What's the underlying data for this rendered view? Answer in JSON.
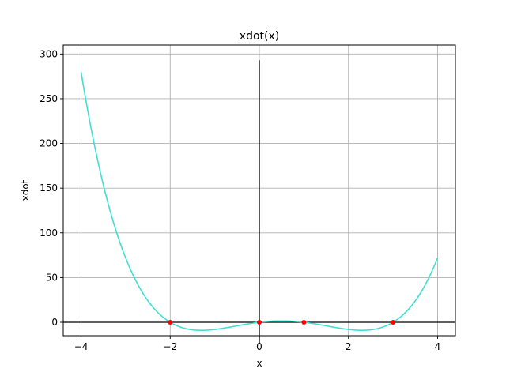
{
  "chart_data": {
    "type": "line",
    "title": "xdot(x)",
    "xlabel": "x",
    "ylabel": "xdot",
    "xlim": [
      -4.4,
      4.4
    ],
    "ylim": [
      -15,
      310
    ],
    "grid": true,
    "x_ticks": [
      -4,
      -2,
      0,
      2,
      4
    ],
    "x_tick_labels": [
      "−4",
      "−2",
      "0",
      "2",
      "4"
    ],
    "y_ticks": [
      0,
      50,
      100,
      150,
      200,
      250,
      300
    ],
    "y_tick_labels": [
      "0",
      "50",
      "100",
      "150",
      "200",
      "250",
      "300"
    ],
    "series": [
      {
        "color": "#40e0d0",
        "function": "x(x+2)(x-1)(x-3)",
        "x_range": [
          -4,
          4
        ],
        "sample_points": [
          {
            "x": -4,
            "y": 280
          },
          {
            "x": -3,
            "y": 72
          },
          {
            "x": -2,
            "y": 0
          },
          {
            "x": -1.3,
            "y": -9
          },
          {
            "x": 0,
            "y": 0
          },
          {
            "x": 0.5,
            "y": 1.6
          },
          {
            "x": 1,
            "y": 0
          },
          {
            "x": 2.3,
            "y": -9
          },
          {
            "x": 3,
            "y": 0
          },
          {
            "x": 4,
            "y": 72
          }
        ]
      }
    ],
    "points": {
      "color": "#ff0000",
      "x": [
        -2,
        0,
        1,
        3
      ],
      "y": [
        0,
        0,
        0,
        0
      ]
    },
    "reference_lines": {
      "color": "#000000",
      "horizontal": {
        "y": 0,
        "x_from": -4.4,
        "x_to": 4.4
      },
      "vertical": {
        "x": 0,
        "y_from": -24,
        "y_to": 293
      }
    }
  }
}
